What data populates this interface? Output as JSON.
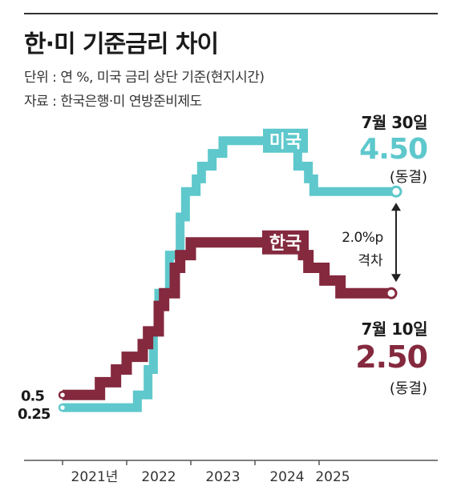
{
  "header": {
    "title": "한·미 기준금리 차이",
    "unit_note": "단위 : 연 %, 미국 금리 상단 기준(현지시간)",
    "source_note": "자료 : 한국은행·미 연방준비제도"
  },
  "colors": {
    "us": "#5ec8cc",
    "korea": "#84293e",
    "axis": "#555555",
    "text": "#1a1a1a"
  },
  "annotations": {
    "us_date": "7월 30일",
    "us_value": "4.50",
    "us_status": "(동결)",
    "kr_date": "7월 10일",
    "kr_value": "2.50",
    "kr_status": "(동결)",
    "gap_value": "2.0%p",
    "gap_label": "격차"
  },
  "chart_data": {
    "type": "line",
    "step": true,
    "title": "한·미 기준금리 차이",
    "xlabel": "",
    "ylabel": "",
    "x_ticks": [
      "2021년",
      "2022",
      "2023",
      "2024",
      "2025"
    ],
    "start_labels": [
      "0.5",
      "0.25"
    ],
    "ylim": [
      0,
      5
    ],
    "series": [
      {
        "name": "미국",
        "color": "#5ec8cc",
        "points": [
          [
            "2021-01",
            0.25
          ],
          [
            "2022-03",
            0.5
          ],
          [
            "2022-05",
            1.0
          ],
          [
            "2022-06",
            1.75
          ],
          [
            "2022-07",
            2.5
          ],
          [
            "2022-09",
            3.25
          ],
          [
            "2022-11",
            4.0
          ],
          [
            "2022-12",
            4.5
          ],
          [
            "2023-02",
            4.75
          ],
          [
            "2023-03",
            5.0
          ],
          [
            "2023-05",
            5.25
          ],
          [
            "2023-07",
            5.5
          ],
          [
            "2024-09",
            5.0
          ],
          [
            "2024-11",
            4.75
          ],
          [
            "2024-12",
            4.5
          ],
          [
            "2025-07",
            4.5
          ]
        ]
      },
      {
        "name": "한국",
        "color": "#84293e",
        "points": [
          [
            "2021-01",
            0.5
          ],
          [
            "2021-08",
            0.75
          ],
          [
            "2021-11",
            1.0
          ],
          [
            "2022-01",
            1.25
          ],
          [
            "2022-04",
            1.5
          ],
          [
            "2022-05",
            1.75
          ],
          [
            "2022-07",
            2.25
          ],
          [
            "2022-08",
            2.5
          ],
          [
            "2022-10",
            3.0
          ],
          [
            "2022-11",
            3.25
          ],
          [
            "2023-01",
            3.5
          ],
          [
            "2024-10",
            3.25
          ],
          [
            "2024-11",
            3.0
          ],
          [
            "2025-02",
            2.75
          ],
          [
            "2025-05",
            2.5
          ],
          [
            "2025-07",
            2.5
          ]
        ]
      }
    ]
  }
}
